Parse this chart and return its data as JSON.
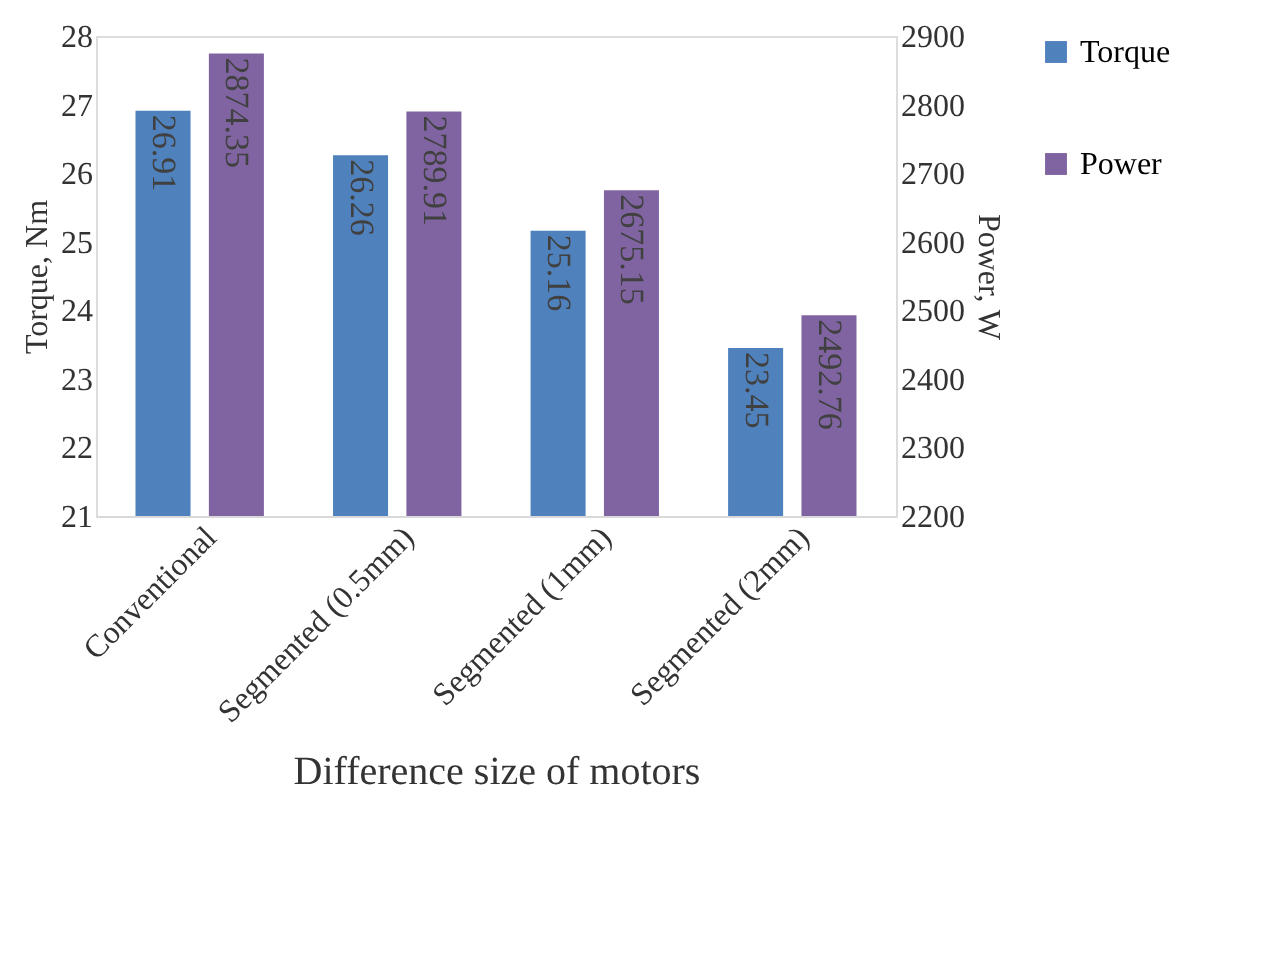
{
  "chart_data": {
    "type": "bar",
    "categories": [
      "Conventional",
      "Segmented (0.5mm)",
      "Segmented (1mm)",
      "Segmented (2mm)"
    ],
    "xlabel": "Difference size of motors",
    "ylabel": "Torque, Nm",
    "y2label": "Power, W",
    "series": [
      {
        "name": "Torque",
        "color": "#4f81bd",
        "values": [
          26.91,
          26.26,
          25.16,
          23.45
        ]
      },
      {
        "name": "Power",
        "color": "#8064a2",
        "axis": "y2",
        "values": [
          2874.35,
          2789.91,
          2675.15,
          2492.76
        ]
      }
    ],
    "ylim": [
      21,
      28
    ],
    "yticks": [
      21,
      22,
      23,
      24,
      25,
      26,
      27,
      28
    ],
    "y2lim": [
      2200,
      2900
    ],
    "y2ticks": [
      2200,
      2300,
      2400,
      2500,
      2600,
      2700,
      2800,
      2900
    ],
    "data_labels": true,
    "legend": "right",
    "grid": false
  }
}
